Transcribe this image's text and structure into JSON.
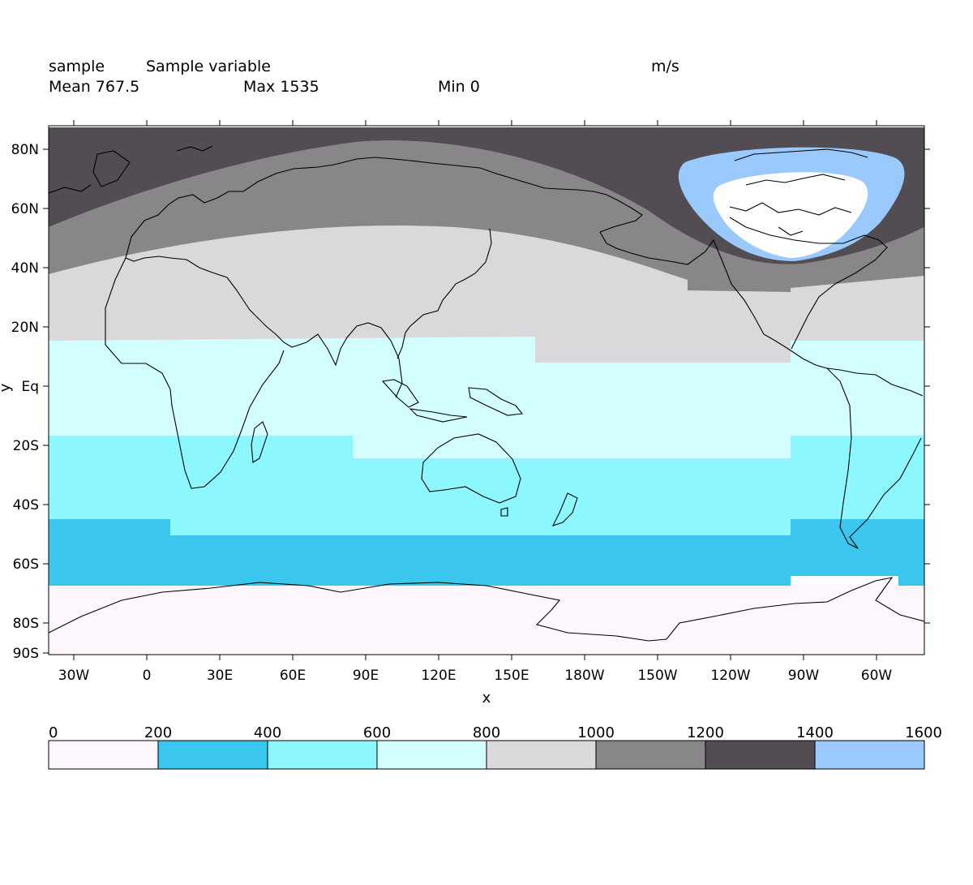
{
  "header": {
    "name": "sample",
    "long_name": "Sample variable",
    "units": "m/s",
    "mean": "Mean 767.5",
    "max": "Max 1535",
    "min": "Min 0"
  },
  "axes": {
    "xlabel": "x",
    "ylabel": "y",
    "lat_ticks": [
      {
        "lat": 80,
        "label": "80N"
      },
      {
        "lat": 60,
        "label": "60N"
      },
      {
        "lat": 40,
        "label": "40N"
      },
      {
        "lat": 20,
        "label": "20N"
      },
      {
        "lat": 0,
        "label": "Eq"
      },
      {
        "lat": -20,
        "label": "20S"
      },
      {
        "lat": -40,
        "label": "40S"
      },
      {
        "lat": -60,
        "label": "60S"
      },
      {
        "lat": -80,
        "label": "80S"
      },
      {
        "lat": -90,
        "label": "90S"
      }
    ],
    "lon_ticks": [
      {
        "lon": -30,
        "label": "30W"
      },
      {
        "lon": 0,
        "label": "0"
      },
      {
        "lon": 30,
        "label": "30E"
      },
      {
        "lon": 60,
        "label": "60E"
      },
      {
        "lon": 90,
        "label": "90E"
      },
      {
        "lon": 120,
        "label": "120E"
      },
      {
        "lon": 150,
        "label": "150E"
      },
      {
        "lon": 180,
        "label": "180W"
      },
      {
        "lon": 210,
        "label": "150W"
      },
      {
        "lon": 240,
        "label": "120W"
      },
      {
        "lon": 270,
        "label": "90W"
      },
      {
        "lon": 300,
        "label": "60W"
      }
    ],
    "lon_range": [
      -40,
      320
    ],
    "lat_range": [
      -90,
      90
    ]
  },
  "colorbar": {
    "ticks": [
      "0",
      "200",
      "400",
      "600",
      "800",
      "1000",
      "1200",
      "1400",
      "1600"
    ],
    "colors": [
      "#fdf6fd",
      "#3bc6ee",
      "#8cf7fe",
      "#d3feff",
      "#dad8da",
      "#888688",
      "#514d52",
      "#99c9fd"
    ]
  },
  "chart_data": {
    "type": "heatmap",
    "title": "Sample variable",
    "units": "m/s",
    "xlabel": "x",
    "ylabel": "y",
    "levels": [
      0,
      200,
      400,
      600,
      800,
      1000,
      1200,
      1400,
      1600
    ],
    "stats": {
      "mean": 767.5,
      "max": 1535,
      "min": 0
    },
    "lat_bands": [
      {
        "range": "90S-67S",
        "value_range": [
          0,
          200
        ]
      },
      {
        "range": "67S-45S",
        "value_range": [
          200,
          400
        ]
      },
      {
        "range": "45S-17S",
        "value_range": [
          400,
          600
        ]
      },
      {
        "range": "17S-16N",
        "value_range": [
          600,
          800
        ]
      },
      {
        "range": "16N-40N",
        "value_range": [
          800,
          1000
        ]
      },
      {
        "range": "40N-65N",
        "value_range": [
          1000,
          1200
        ]
      },
      {
        "range": "65N-88N",
        "value_range": [
          1200,
          1400
        ]
      }
    ],
    "high_center": {
      "lon": 290,
      "lat": 65,
      "value_range": [
        1400,
        1600
      ]
    },
    "grid": false
  }
}
